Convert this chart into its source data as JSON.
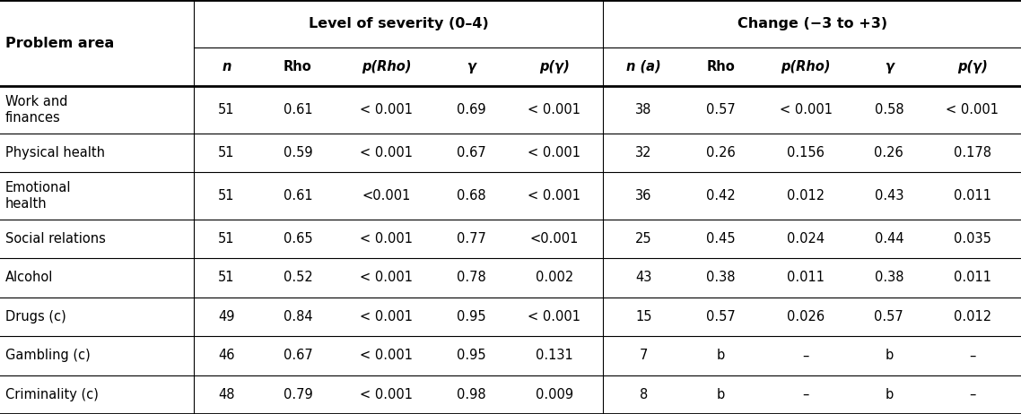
{
  "col_headers_row1_left": "Problem area",
  "col_headers_row1_sev": "Level of severity (0–4)",
  "col_headers_row1_chg": "Change (−3 to +3)",
  "col_headers_row2": [
    "n",
    "Rho",
    "p(Rho)",
    "γ",
    "p(γ)",
    "n (a)",
    "Rho",
    "p(Rho)",
    "γ",
    "p(γ)"
  ],
  "rows": [
    [
      "Work and\nfinances",
      "51",
      "0.61",
      "< 0.001",
      "0.69",
      "< 0.001",
      "38",
      "0.57",
      "< 0.001",
      "0.58",
      "< 0.001"
    ],
    [
      "Physical health",
      "51",
      "0.59",
      "< 0.001",
      "0.67",
      "< 0.001",
      "32",
      "0.26",
      "0.156",
      "0.26",
      "0.178"
    ],
    [
      "Emotional\nhealth",
      "51",
      "0.61",
      "<0.001",
      "0.68",
      "< 0.001",
      "36",
      "0.42",
      "0.012",
      "0.43",
      "0.011"
    ],
    [
      "Social relations",
      "51",
      "0.65",
      "< 0.001",
      "0.77",
      "<0.001",
      "25",
      "0.45",
      "0.024",
      "0.44",
      "0.035"
    ],
    [
      "Alcohol",
      "51",
      "0.52",
      "< 0.001",
      "0.78",
      "0.002",
      "43",
      "0.38",
      "0.011",
      "0.38",
      "0.011"
    ],
    [
      "Drugs (c)",
      "49",
      "0.84",
      "< 0.001",
      "0.95",
      "< 0.001",
      "15",
      "0.57",
      "0.026",
      "0.57",
      "0.012"
    ],
    [
      "Gambling (c)",
      "46",
      "0.67",
      "< 0.001",
      "0.95",
      "0.131",
      "7",
      "b",
      "–",
      "b",
      "–"
    ],
    [
      "Criminality (c)",
      "48",
      "0.79",
      "< 0.001",
      "0.98",
      "0.009",
      "8",
      "b",
      "–",
      "b",
      "–"
    ]
  ],
  "bg_color": "#ffffff",
  "line_color": "#000000",
  "text_color": "#000000",
  "font_size": 10.5,
  "header_font_size": 11.5
}
